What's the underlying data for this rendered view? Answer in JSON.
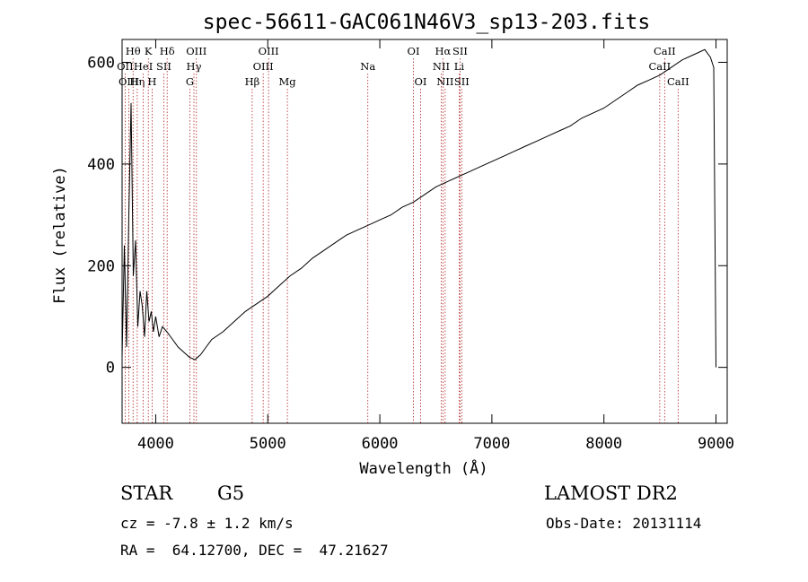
{
  "chart_data": {
    "type": "line",
    "title": "spec-56611-GAC061N46V3_sp13-203.fits",
    "xlabel": "Wavelength (Å)",
    "ylabel": "Flux (relative)",
    "xlim": [
      3700,
      9100
    ],
    "ylim": [
      -110,
      645
    ],
    "x_ticks": [
      4000,
      5000,
      6000,
      7000,
      8000,
      9000
    ],
    "y_ticks": [
      0,
      200,
      400,
      600
    ],
    "grid": false,
    "series": [
      {
        "values_description_free": true,
        "x": [
          3700,
          3720,
          3740,
          3760,
          3780,
          3800,
          3820,
          3840,
          3860,
          3880,
          3900,
          3920,
          3940,
          3960,
          3980,
          4000,
          4030,
          4060,
          4100,
          4150,
          4200,
          4250,
          4300,
          4350,
          4400,
          4450,
          4500,
          4600,
          4700,
          4800,
          4900,
          5000,
          5100,
          5200,
          5300,
          5400,
          5500,
          5600,
          5700,
          5800,
          5900,
          6000,
          6100,
          6200,
          6300,
          6400,
          6500,
          6600,
          6700,
          6800,
          6900,
          7000,
          7100,
          7200,
          7300,
          7400,
          7500,
          7600,
          7700,
          7800,
          7900,
          8000,
          8100,
          8200,
          8300,
          8400,
          8500,
          8600,
          8700,
          8800,
          8900,
          8950,
          8980,
          9000
        ],
        "y": [
          20,
          240,
          40,
          300,
          520,
          180,
          250,
          80,
          150,
          120,
          60,
          150,
          90,
          110,
          70,
          100,
          60,
          80,
          70,
          55,
          40,
          30,
          20,
          15,
          25,
          40,
          55,
          70,
          90,
          110,
          125,
          140,
          160,
          180,
          195,
          215,
          230,
          245,
          260,
          270,
          280,
          290,
          300,
          315,
          325,
          340,
          355,
          365,
          375,
          385,
          395,
          405,
          415,
          425,
          435,
          445,
          455,
          465,
          475,
          490,
          500,
          510,
          525,
          540,
          555,
          565,
          575,
          590,
          605,
          615,
          625,
          610,
          590,
          0
        ]
      }
    ],
    "line_markers": [
      {
        "label": "Hθ",
        "x": 3798,
        "row": 1
      },
      {
        "label": "OII",
        "x": 3727,
        "row": 2
      },
      {
        "label": "OIII",
        "x": 3760,
        "row": 3
      },
      {
        "label": "Hη",
        "x": 3835,
        "row": 3
      },
      {
        "label": "K",
        "x": 3934,
        "row": 1
      },
      {
        "label": "HeI",
        "x": 3889,
        "row": 2
      },
      {
        "label": "H",
        "x": 3968,
        "row": 3
      },
      {
        "label": "Hδ",
        "x": 4102,
        "row": 1
      },
      {
        "label": "SII",
        "x": 4072,
        "row": 2
      },
      {
        "label": "OIII",
        "x": 4363,
        "row": 1
      },
      {
        "label": "Hγ",
        "x": 4341,
        "row": 2
      },
      {
        "label": "G",
        "x": 4305,
        "row": 3
      },
      {
        "label": "Hβ",
        "x": 4861,
        "row": 3
      },
      {
        "label": "OIII",
        "x": 5007,
        "row": 1
      },
      {
        "label": "OIII",
        "x": 4959,
        "row": 2
      },
      {
        "label": "Mg",
        "x": 5175,
        "row": 3
      },
      {
        "label": "Na",
        "x": 5893,
        "row": 2
      },
      {
        "label": "OI",
        "x": 6300,
        "row": 1
      },
      {
        "label": "OI",
        "x": 6364,
        "row": 3
      },
      {
        "label": "Hα",
        "x": 6563,
        "row": 1
      },
      {
        "label": "NII",
        "x": 6548,
        "row": 2
      },
      {
        "label": "NII",
        "x": 6583,
        "row": 3
      },
      {
        "label": "SII",
        "x": 6716,
        "row": 1
      },
      {
        "label": "Li",
        "x": 6708,
        "row": 2
      },
      {
        "label": "SII",
        "x": 6731,
        "row": 3
      },
      {
        "label": "CaII",
        "x": 8542,
        "row": 1
      },
      {
        "label": "CaII",
        "x": 8498,
        "row": 2
      },
      {
        "label": "CaII",
        "x": 8662,
        "row": 3
      }
    ]
  },
  "info": {
    "object_class": "STAR",
    "subclass": "G5",
    "survey": "LAMOST DR2",
    "cz": "cz = -7.8 ± 1.2 km/s",
    "obs_date": "Obs-Date: 20131114",
    "radec": "RA =  64.12700, DEC =  47.21627"
  }
}
